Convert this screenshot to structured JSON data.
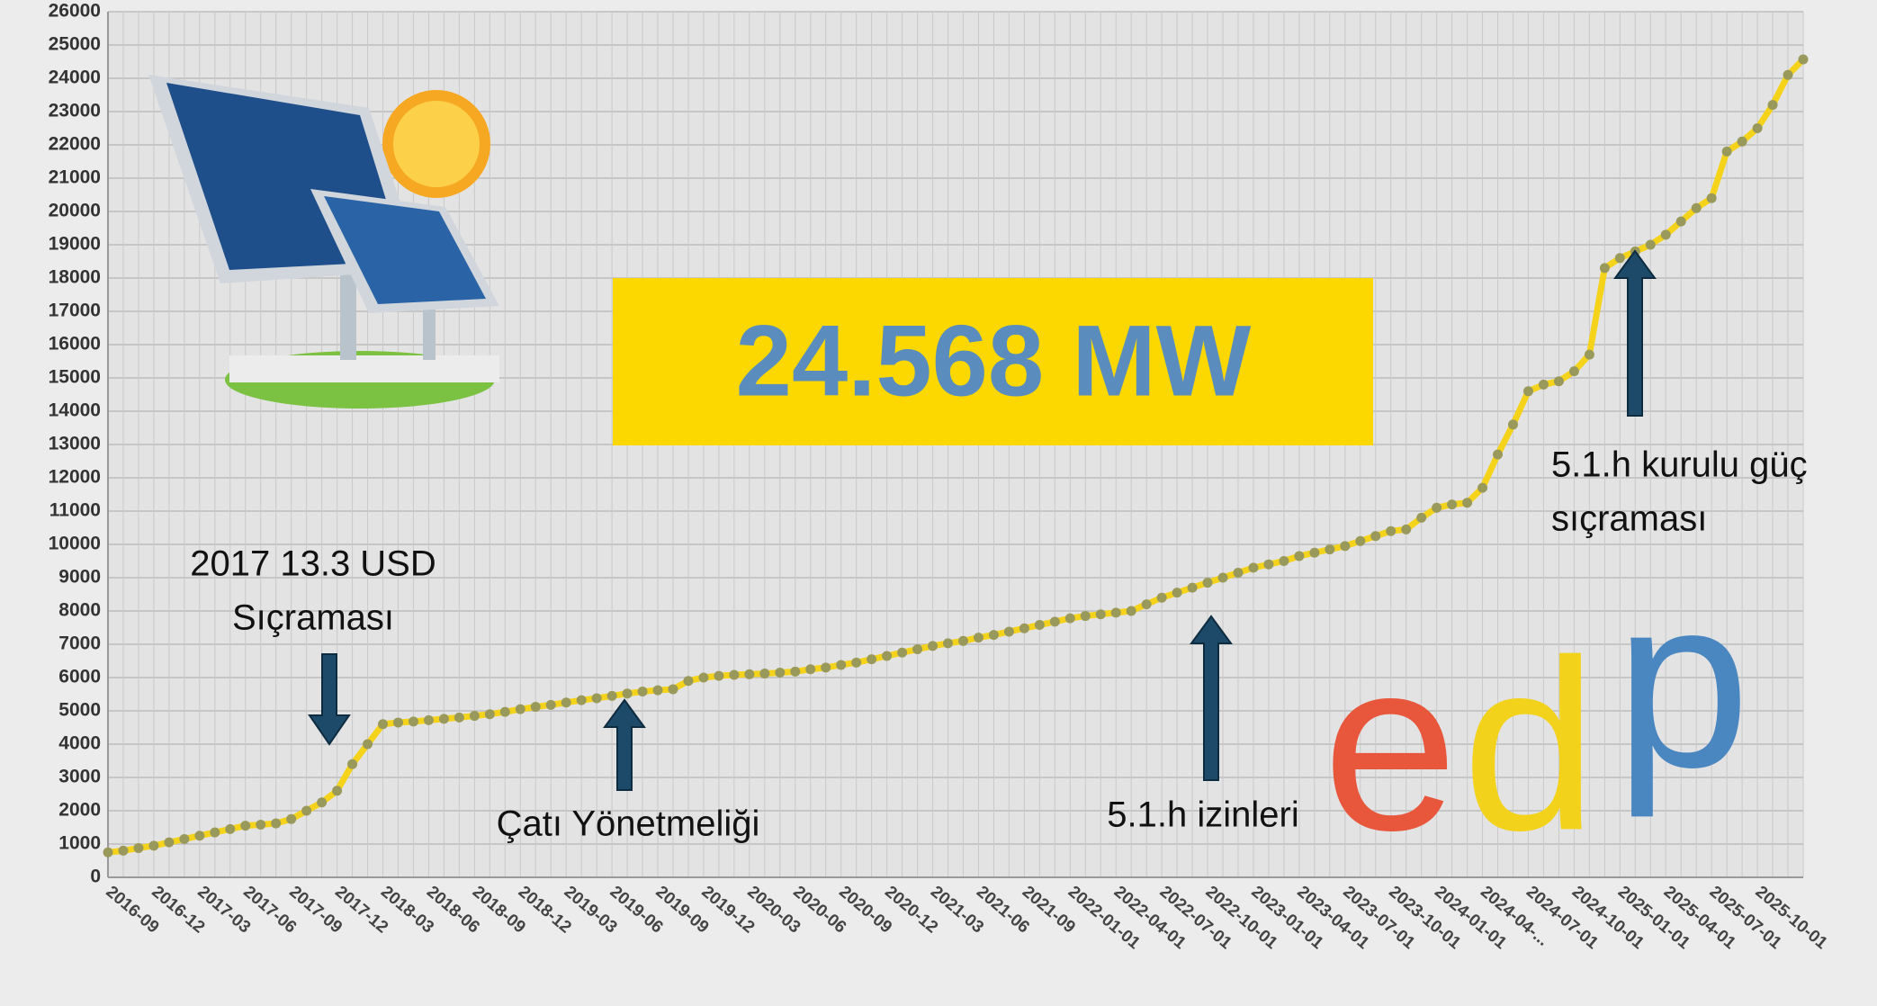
{
  "chart_data": {
    "type": "line",
    "headline": "24.568 MW",
    "annotations": [
      "2017 13.3 USD",
      "Sıçraması",
      "Çatı Yönetmeliği",
      "5.1.h izinleri",
      "5.1.h kurulu güç",
      "sıçraması"
    ],
    "logo": [
      "e",
      "d",
      "p"
    ],
    "categories": [
      "2016-09",
      null,
      null,
      "2016-12",
      null,
      null,
      "2017-03",
      null,
      null,
      "2017-06",
      null,
      null,
      "2017-09",
      null,
      null,
      "2017-12",
      null,
      null,
      "2018-03",
      null,
      null,
      "2018-06",
      null,
      null,
      "2018-09",
      null,
      null,
      "2018-12",
      null,
      null,
      "2019-03",
      null,
      null,
      "2019-06",
      null,
      null,
      "2019-09",
      null,
      null,
      "2019-12",
      null,
      null,
      "2020-03",
      null,
      null,
      "2020-06",
      null,
      null,
      "2020-09",
      null,
      null,
      "2020-12",
      null,
      null,
      "2021-03",
      null,
      null,
      "2021-06",
      null,
      null,
      "2021-09",
      null,
      null,
      "2022-01-01",
      null,
      null,
      "2022-04-01",
      null,
      null,
      "2022-07-01",
      null,
      null,
      "2022-10-01",
      null,
      null,
      "2023-01-01",
      null,
      null,
      "2023-04-01",
      null,
      null,
      "2023-07-01",
      null,
      null,
      "2023-10-01",
      null,
      null,
      "2024-01-01",
      null,
      null,
      "2024-04-...",
      null,
      null,
      "2024-07-01",
      null,
      null,
      "2024-10-01",
      null,
      null,
      "2025-01-01",
      null,
      null,
      "2025-04-01",
      null,
      null,
      "2025-07-01",
      null,
      null,
      "2025-10-01",
      null,
      null,
      null
    ],
    "values": [
      750,
      800,
      880,
      950,
      1050,
      1150,
      1250,
      1350,
      1450,
      1550,
      1580,
      1620,
      1750,
      2000,
      2250,
      2600,
      3400,
      4000,
      4600,
      4650,
      4680,
      4720,
      4760,
      4800,
      4850,
      4900,
      4970,
      5050,
      5120,
      5180,
      5250,
      5320,
      5380,
      5450,
      5520,
      5580,
      5620,
      5650,
      5900,
      6000,
      6050,
      6080,
      6100,
      6120,
      6150,
      6180,
      6250,
      6300,
      6380,
      6450,
      6550,
      6650,
      6750,
      6850,
      6950,
      7030,
      7100,
      7200,
      7280,
      7380,
      7480,
      7580,
      7680,
      7780,
      7850,
      7900,
      7950,
      8000,
      8200,
      8400,
      8550,
      8700,
      8850,
      9000,
      9150,
      9300,
      9400,
      9500,
      9650,
      9750,
      9850,
      9950,
      10100,
      10250,
      10400,
      10450,
      10800,
      11100,
      11200,
      11250,
      11700,
      12700,
      13600,
      14600,
      14800,
      14900,
      15200,
      15700,
      18300,
      18600,
      18800,
      19000,
      19300,
      19700,
      20100,
      20400,
      21800,
      22100,
      22500,
      23200,
      24100,
      24568
    ],
    "line_color": "#f5d31a",
    "marker_color": "#9a995c",
    "ylim": [
      0,
      26000
    ],
    "yticks": [
      0,
      1000,
      2000,
      3000,
      4000,
      5000,
      6000,
      7000,
      8000,
      9000,
      10000,
      11000,
      12000,
      13000,
      14000,
      15000,
      16000,
      17000,
      18000,
      19000,
      20000,
      21000,
      22000,
      23000,
      24000,
      25000,
      26000
    ],
    "grid": true
  }
}
